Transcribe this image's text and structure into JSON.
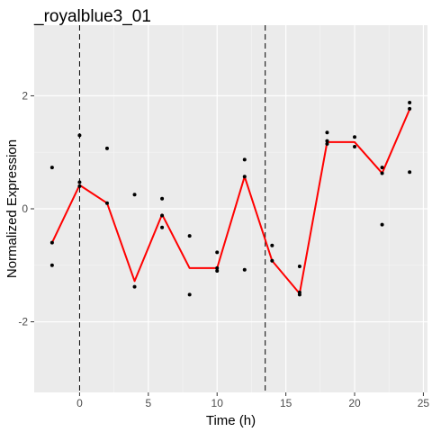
{
  "chart_data": {
    "type": "line",
    "title": "_royalblue3_01",
    "xlabel": "Time (h)",
    "ylabel": "Normalized Expression",
    "xlim": [
      -3.3,
      25.3
    ],
    "ylim": [
      -3.25,
      3.25
    ],
    "x_ticks": [
      0,
      5,
      10,
      15,
      20,
      25
    ],
    "y_ticks": [
      -2,
      0,
      2
    ],
    "grid": true,
    "background": "#ebebeb",
    "series": [
      {
        "kind": "points",
        "color": "#000000",
        "x": [
          -2,
          -2,
          -2,
          0,
          0,
          0,
          2,
          2,
          4,
          4,
          6,
          6,
          6,
          8,
          8,
          10,
          10,
          10,
          12,
          12,
          12,
          14,
          14,
          16,
          16,
          16,
          18,
          18,
          18,
          20,
          20,
          22,
          22,
          22,
          24,
          24,
          24
        ],
        "y": [
          0.73,
          -0.6,
          -1.0,
          1.3,
          0.47,
          0.4,
          1.07,
          0.1,
          0.25,
          -1.38,
          0.18,
          -0.33,
          -0.12,
          -0.48,
          -1.52,
          -0.77,
          -1.1,
          -1.05,
          0.87,
          0.57,
          -1.08,
          -0.65,
          -0.92,
          -1.02,
          -1.52,
          -1.48,
          1.35,
          1.2,
          1.15,
          1.27,
          1.1,
          0.73,
          0.63,
          -0.28,
          1.88,
          1.77,
          0.65
        ]
      },
      {
        "kind": "line",
        "color": "#ff0000",
        "x": [
          -2,
          0,
          2,
          4,
          6,
          8,
          10,
          12,
          14,
          16,
          18,
          20,
          22,
          24
        ],
        "y": [
          -0.6,
          0.42,
          0.1,
          -1.28,
          -0.1,
          -1.05,
          -1.05,
          0.57,
          -0.92,
          -1.5,
          1.18,
          1.18,
          0.63,
          1.76
        ]
      }
    ],
    "vlines": [
      {
        "x": 0,
        "style": "dashed",
        "color": "#000000"
      },
      {
        "x": 13.5,
        "style": "dashed",
        "color": "#000000"
      }
    ]
  }
}
